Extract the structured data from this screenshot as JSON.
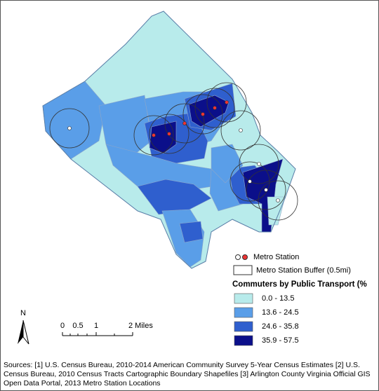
{
  "legend": {
    "metro_station": "Metro Station",
    "buffer": "Metro Station Buffer (0.5mi)",
    "title": "Commuters by Public Transport (%",
    "classes": [
      {
        "label": "0.0 - 13.5",
        "color": "#b8ebeb"
      },
      {
        "label": "13.6 - 24.5",
        "color": "#5a9ee8"
      },
      {
        "label": "24.6 - 35.8",
        "color": "#2f5fce"
      },
      {
        "label": "35.9 - 57.5",
        "color": "#0b0f8a"
      }
    ]
  },
  "north_arrow": "N",
  "scale_bar": {
    "labels": [
      "0",
      "0.5",
      "1",
      "2 Miles"
    ]
  },
  "sources": "Sources: [1] U.S. Census Bureau, 2010-2014 American Community Survey 5-Year Census Estimates [2] U.S. Census Bureau, 2010 Census Tracts Cartographic Boundary Shapefiles [3] Arlington County Virginia Official GIS Open Data Portal, 2013 Metro Station Locations"
}
